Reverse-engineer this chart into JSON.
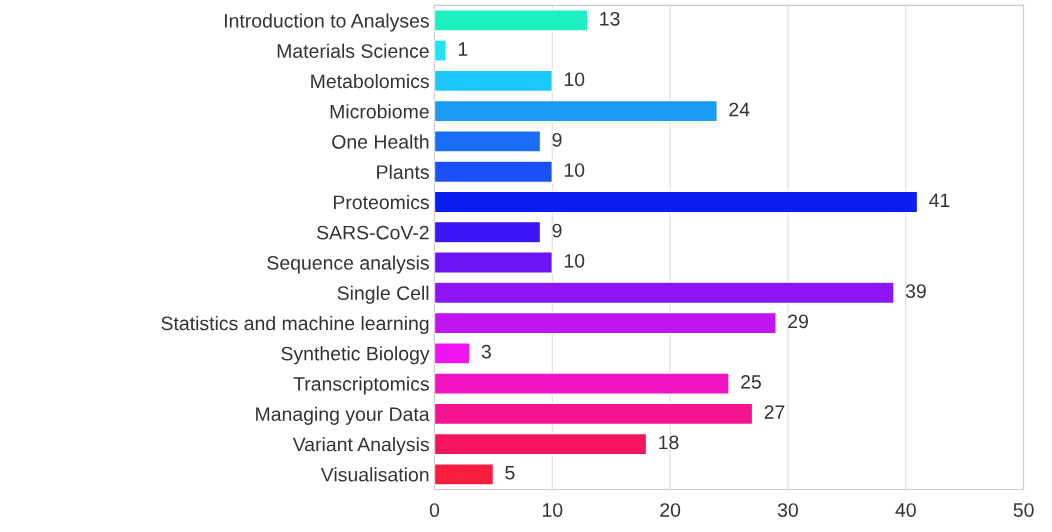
{
  "chart_data": {
    "type": "bar",
    "orientation": "horizontal",
    "categories": [
      "Introduction to Analyses",
      "Materials Science",
      "Metabolomics",
      "Microbiome",
      "One Health",
      "Plants",
      "Proteomics",
      "SARS-CoV-2",
      "Sequence analysis",
      "Single Cell",
      "Statistics and machine learning",
      "Synthetic Biology",
      "Transcriptomics",
      "Managing your Data",
      "Variant Analysis",
      "Visualisation"
    ],
    "values": [
      13,
      1,
      10,
      24,
      9,
      10,
      41,
      9,
      10,
      39,
      29,
      3,
      25,
      27,
      18,
      5
    ],
    "colors": [
      "#1df0c0",
      "#1ee3f5",
      "#1ac8ff",
      "#1a9cf5",
      "#1a6ef5",
      "#1a50f5",
      "#0a1ef0",
      "#3d14f5",
      "#6a14f5",
      "#8c14f5",
      "#c014f0",
      "#f014f0",
      "#f014c0",
      "#f51490",
      "#f51460",
      "#f51e3c"
    ],
    "xlim": [
      0,
      50
    ],
    "xticks": [
      0,
      10,
      20,
      30,
      40,
      50
    ],
    "grid": "x",
    "data_labels": true
  }
}
